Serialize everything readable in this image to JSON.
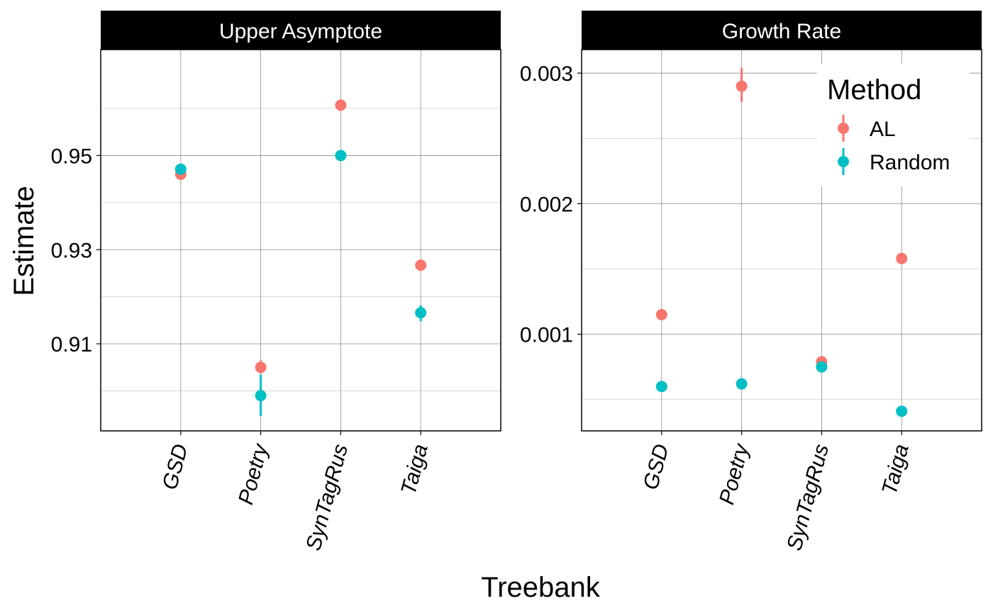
{
  "chart_data": {
    "type": "scatter",
    "xlabel": "Treebank",
    "ylabel": "Estimate",
    "categories": [
      "GSD",
      "Poetry",
      "SynTagRus",
      "Taiga"
    ],
    "legend": {
      "title": "Method",
      "placement": "top-right (inside Growth Rate panel)",
      "entries": [
        "AL",
        "Random"
      ]
    },
    "colors": {
      "AL": "#F8766D",
      "Random": "#00BFC4"
    },
    "grid": true,
    "panels": [
      {
        "title": "Upper Asymptote",
        "ylim": [
          0.8915,
          0.9725
        ],
        "yticks": [
          0.91,
          0.93,
          0.95
        ],
        "ytick_labels": [
          "0.91",
          "0.93",
          "0.95"
        ],
        "yminor": [
          0.9,
          0.92,
          0.94,
          0.96
        ],
        "series": [
          {
            "name": "AL",
            "values": [
              0.946,
              0.905,
              0.9607,
              0.9267
            ],
            "lower": [
              0.9458,
              0.9037,
              0.9605,
              0.9265
            ],
            "upper": [
              0.9462,
              0.9065,
              0.9609,
              0.9269
            ]
          },
          {
            "name": "Random",
            "values": [
              0.9471,
              0.899,
              0.95,
              0.9166
            ],
            "lower": [
              0.9466,
              0.8947,
              0.9498,
              0.9148
            ],
            "upper": [
              0.9476,
              0.9035,
              0.9502,
              0.9182
            ]
          }
        ]
      },
      {
        "title": "Growth Rate",
        "ylim": [
          0.00026,
          0.00318
        ],
        "yticks": [
          0.001,
          0.002,
          0.003
        ],
        "ytick_labels": [
          "0.001",
          "0.002",
          "0.003"
        ],
        "yminor": [
          0.0005,
          0.0015,
          0.0025
        ],
        "series": [
          {
            "name": "AL",
            "values": [
              0.00115,
              0.0029,
              0.00079,
              0.00158
            ],
            "lower": [
              0.00114,
              0.00278,
              0.00078,
              0.00157
            ],
            "upper": [
              0.00116,
              0.00304,
              0.0008,
              0.00159
            ]
          },
          {
            "name": "Random",
            "values": [
              0.0006,
              0.00062,
              0.00075,
              0.00041
            ],
            "lower": [
              0.00059,
              0.00061,
              0.00074,
              0.0004
            ],
            "upper": [
              0.00061,
              0.00063,
              0.00076,
              0.00042
            ]
          }
        ]
      }
    ]
  }
}
